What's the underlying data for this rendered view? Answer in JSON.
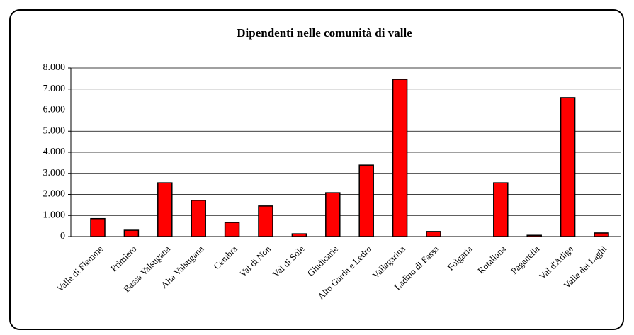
{
  "chart_data": {
    "type": "bar",
    "title": "Dipendenti nelle comunità di valle",
    "categories": [
      "Valle di Fiemme",
      "Primiero",
      "Bassa Valsugana",
      "Alta Valsugana",
      "Cembra",
      "Val di Non",
      "Val di Sole",
      "Giudicarie",
      "Alto Garda e Ledro",
      "Vallagarina",
      "Ladino di Fassa",
      "Folgaria",
      "Rotaliana",
      "Paganella",
      "Val d'Adige",
      "Valle dei Laghi"
    ],
    "values": [
      850,
      300,
      2550,
      1720,
      670,
      1450,
      130,
      2080,
      3390,
      7460,
      240,
      0,
      2550,
      60,
      6590,
      170
    ],
    "color": "#ff0000",
    "ylim": [
      0,
      8000
    ],
    "yticks": [
      0,
      {
        "value": 1000,
        "label": "1.000"
      },
      {
        "value": 2000,
        "label": "2.000"
      },
      {
        "value": 3000,
        "label": "3.000"
      },
      {
        "value": 4000,
        "label": "4.000"
      },
      {
        "value": 5000,
        "label": "5.000"
      },
      {
        "value": 6000,
        "label": "6.000"
      },
      {
        "value": 7000,
        "label": "7.000"
      },
      {
        "value": 8000,
        "label": "8.000"
      }
    ],
    "grid": true
  }
}
